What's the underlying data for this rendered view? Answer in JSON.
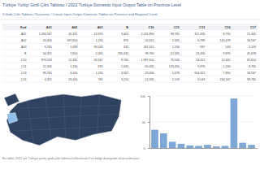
{
  "header": {
    "title": "Türkiye Yurtiçi Girdi-Çıktı Tablosu / 2022 Turkiye Domestic Input Output Table on Province Level",
    "subtitle": "İl Girdi-Çıktı Tablosu Oluşturma / Create Input-Output Domestic Tables on Province and Regional Level"
  },
  "table": {
    "columns": [
      "Kod",
      "A01",
      "A02",
      "A03",
      "B",
      "C10",
      "C11",
      "C13",
      "C16",
      "C17"
    ],
    "rows": [
      [
        "A01",
        "1,234,567",
        "45,321",
        "12,876",
        "3,402",
        "2,145,890",
        "98,765",
        "312,456",
        "8,790",
        "21,345"
      ],
      [
        "A02",
        "23,456",
        "187,654",
        "1,234",
        "876",
        "54,321",
        "2,345",
        "6,789",
        "145,678",
        "34,567"
      ],
      [
        "A03",
        "8,765",
        "1,098",
        "96,543",
        "432",
        "187,321",
        "1,234",
        "987",
        "543",
        "2,109"
      ],
      [
        "B",
        "54,321",
        "7,654",
        "2,345",
        "765,432",
        "98,765",
        "12,345",
        "23,456",
        "9,876",
        "45,678"
      ],
      [
        "C10",
        "876,543",
        "12,345",
        "34,567",
        "8,765",
        "1,987,654",
        "76,543",
        "54,321",
        "12,345",
        "87,654"
      ],
      [
        "C11",
        "12,345",
        "1,234",
        "876",
        "2,345",
        "65,432",
        "123,456",
        "9,876",
        "1,234",
        "8,765"
      ],
      [
        "C13",
        "98,765",
        "3,456",
        "1,234",
        "4,567",
        "23,456",
        "5,678",
        "654,321",
        "7,890",
        "34,567"
      ],
      [
        "C16",
        "4,321",
        "23,456",
        "765",
        "3,210",
        "12,345",
        "2,109",
        "6,543",
        "234,567",
        "98,765"
      ]
    ]
  },
  "chart_data": {
    "type": "bar",
    "categories": [
      null,
      null,
      null,
      null,
      null,
      null,
      null,
      null,
      null,
      null,
      null,
      null
    ],
    "values": [
      35,
      28,
      12,
      8,
      5,
      4,
      6,
      3,
      4,
      95,
      10,
      6
    ],
    "color": "#7ea6d6",
    "ylim": [
      0,
      100
    ],
    "yticks": [
      0,
      50,
      100
    ],
    "tick_labels": "y"
  },
  "footer": {
    "text": "Bu tablo, 2022 yılı Türkiye yurtiçi girdi-çıktı tablosu kullanılarak il ve bölge düzeyinde oluşturulmuştur."
  }
}
